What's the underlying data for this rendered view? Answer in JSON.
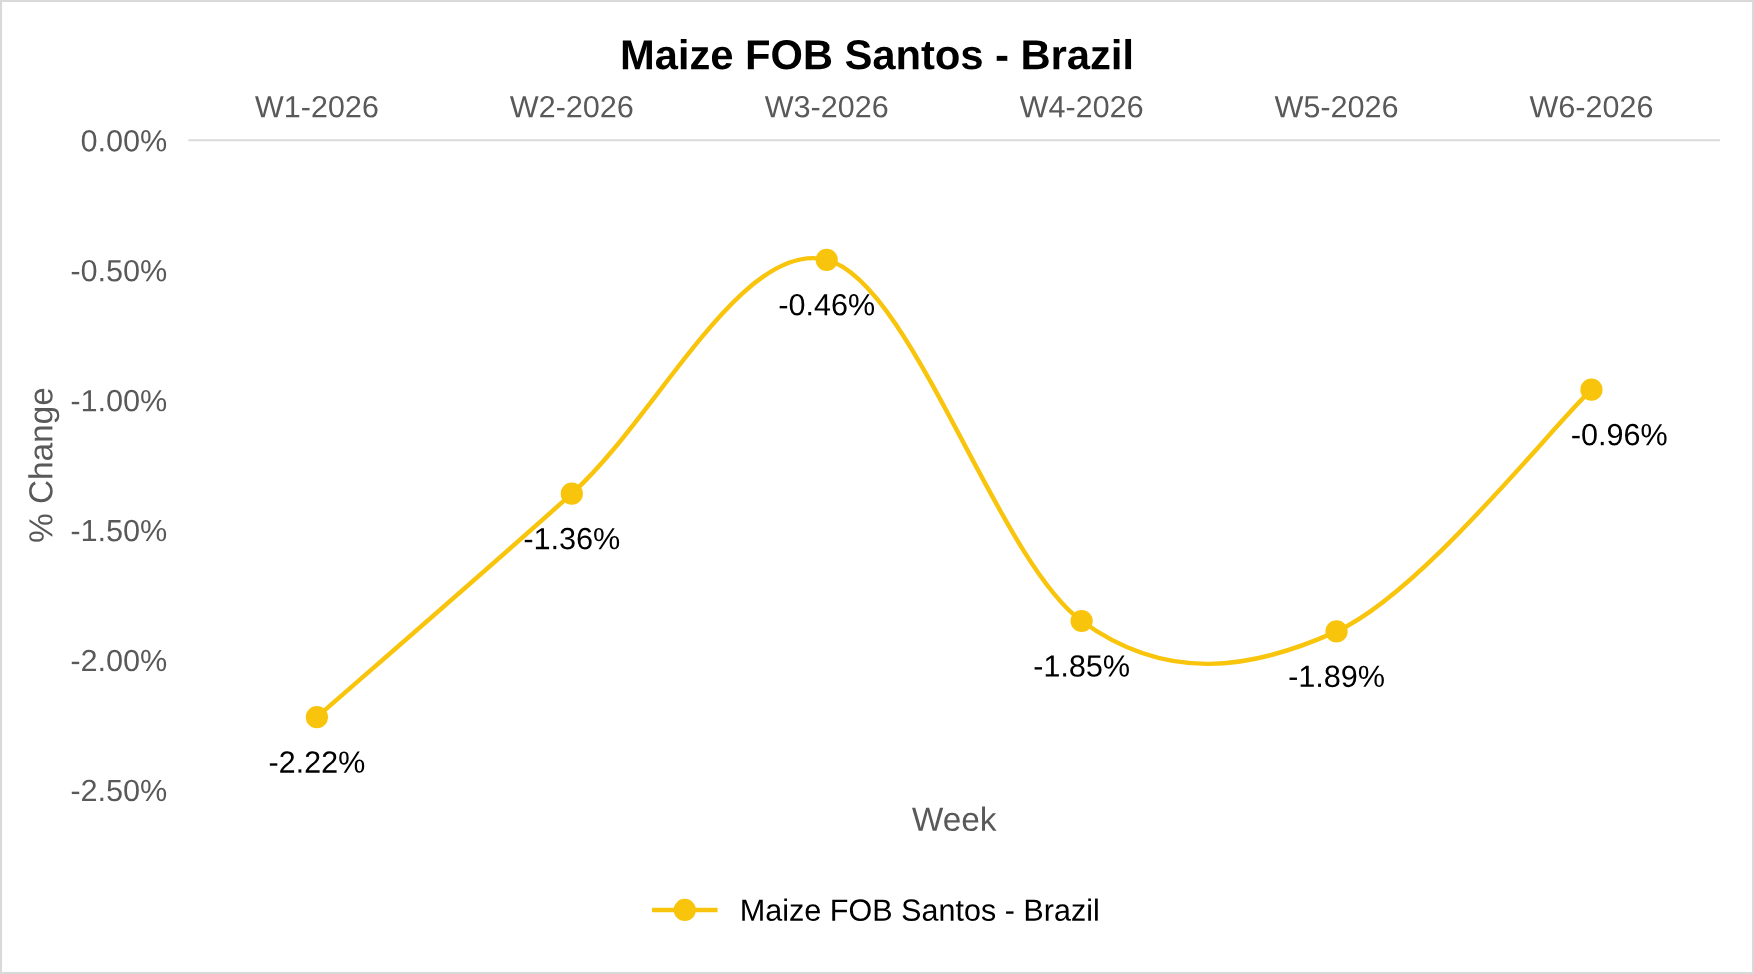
{
  "chart_data": {
    "type": "line",
    "title": "Maize FOB Santos - Brazil",
    "xlabel": "Week",
    "ylabel": "% Change",
    "categories": [
      "W1-2026",
      "W2-2026",
      "W3-2026",
      "W4-2026",
      "W5-2026",
      "W6-2026"
    ],
    "series": [
      {
        "name": "Maize FOB Santos - Brazil",
        "color": "#f8c40c",
        "values": [
          -2.22,
          -1.36,
          -0.46,
          -1.85,
          -1.89,
          -0.96
        ],
        "value_labels": [
          "-2.22%",
          "-1.36%",
          "-0.46%",
          "-1.85%",
          "-1.89%",
          "-0.96%"
        ]
      }
    ],
    "ylim": [
      -2.5,
      0
    ],
    "yticks": [
      {
        "value": 0,
        "label": "0.00%"
      },
      {
        "value": -0.5,
        "label": "-0.50%"
      },
      {
        "value": -1,
        "label": "-1.00%"
      },
      {
        "value": -1.5,
        "label": "-1.50%"
      },
      {
        "value": -2,
        "label": "-2.00%"
      },
      {
        "value": -2.5,
        "label": "-2.50%"
      }
    ],
    "grid": false,
    "legend": "bottom",
    "marker": "circle",
    "line_style": "solid"
  }
}
